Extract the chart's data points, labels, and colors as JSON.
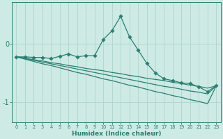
{
  "xlabel": "Humidex (Indice chaleur)",
  "x": [
    0,
    1,
    2,
    3,
    4,
    5,
    6,
    7,
    8,
    9,
    10,
    11,
    12,
    13,
    14,
    15,
    16,
    17,
    18,
    19,
    20,
    21,
    22,
    23
  ],
  "line_main": [
    -0.22,
    -0.22,
    -0.23,
    -0.23,
    -0.25,
    -0.21,
    -0.17,
    -0.22,
    -0.2,
    -0.2,
    0.08,
    0.23,
    0.48,
    0.13,
    -0.1,
    -0.33,
    -0.5,
    -0.6,
    -0.63,
    -0.67,
    -0.68,
    -0.74,
    -0.82,
    -0.72
  ],
  "line_reg1": [
    -0.22,
    -0.24,
    -0.27,
    -0.29,
    -0.32,
    -0.34,
    -0.37,
    -0.39,
    -0.42,
    -0.44,
    -0.46,
    -0.49,
    -0.51,
    -0.54,
    -0.56,
    -0.59,
    -0.61,
    -0.63,
    -0.66,
    -0.68,
    -0.71,
    -0.73,
    -0.76,
    -0.72
  ],
  "line_reg2": [
    -0.22,
    -0.25,
    -0.28,
    -0.31,
    -0.34,
    -0.37,
    -0.4,
    -0.43,
    -0.46,
    -0.49,
    -0.52,
    -0.55,
    -0.58,
    -0.61,
    -0.64,
    -0.67,
    -0.7,
    -0.73,
    -0.75,
    -0.78,
    -0.81,
    -0.83,
    -0.86,
    -0.72
  ],
  "line_reg3": [
    -0.22,
    -0.26,
    -0.3,
    -0.34,
    -0.37,
    -0.41,
    -0.45,
    -0.49,
    -0.52,
    -0.56,
    -0.6,
    -0.63,
    -0.67,
    -0.71,
    -0.74,
    -0.78,
    -0.82,
    -0.85,
    -0.89,
    -0.92,
    -0.96,
    -0.99,
    -1.03,
    -0.72
  ],
  "line_color": "#2a7f72",
  "bg_color": "#cdeae4",
  "grid_color": "#b0d5ce",
  "ylim": [
    -1.35,
    0.72
  ],
  "yticks": [
    0,
    -1
  ],
  "xlim": [
    -0.5,
    23.5
  ]
}
